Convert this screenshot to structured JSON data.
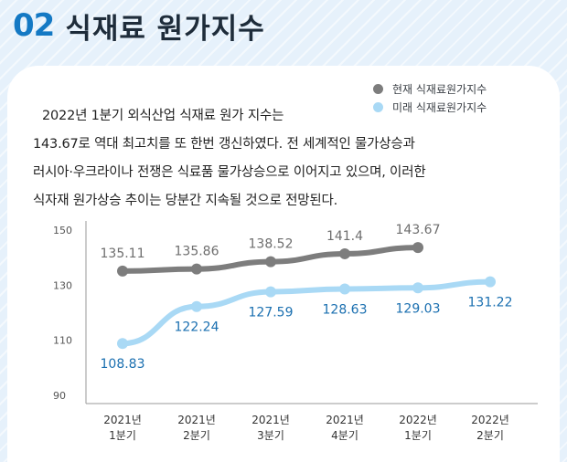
{
  "header": {
    "number": "02",
    "title": "식재료 원가지수"
  },
  "legend": [
    {
      "label": "현재 식재료원가지수",
      "color": "#7d7d7d"
    },
    {
      "label": "미래 식재료원가지수",
      "color": "#a9d9f5"
    }
  ],
  "paragraph": [
    "2022년 1분기 외식산업 식재료 원가 지수는",
    "143.67로 역대 최고치를 또 한번 갱신하였다. 전 세계적인 물가상승과",
    "러시아·우크라이나 전쟁은 식료품 물가상승으로 이어지고 있으며, 이러한",
    "식자재 원가상승 추이는 당분간 지속될 것으로 전망된다."
  ],
  "chart_data": {
    "type": "line",
    "categories": [
      [
        "2021년",
        "1분기"
      ],
      [
        "2021년",
        "2분기"
      ],
      [
        "2021년",
        "3분기"
      ],
      [
        "2021년",
        "4분기"
      ],
      [
        "2022년",
        "1분기"
      ],
      [
        "2022년",
        "2분기"
      ]
    ],
    "yticks": [
      "150",
      "130",
      "110",
      "90"
    ],
    "ylim": [
      90,
      150
    ],
    "grid": false,
    "series": [
      {
        "name": "현재 식재료원가지수",
        "color": "#7d7d7d",
        "label_color": "#6e6e6e",
        "label_position": "above",
        "values": [
          135.11,
          135.86,
          138.52,
          141.4,
          143.67,
          null
        ],
        "labels": [
          "135.11",
          "135.86",
          "138.52",
          "141.4",
          "143.67",
          ""
        ]
      },
      {
        "name": "미래 식재료원가지수",
        "color": "#a9d9f5",
        "label_color": "#1a6fb0",
        "label_position": "below",
        "values": [
          108.83,
          122.24,
          127.59,
          128.63,
          129.03,
          131.22
        ],
        "labels": [
          "108.83",
          "122.24",
          "127.59",
          "128.63",
          "129.03",
          "131.22"
        ]
      }
    ]
  }
}
